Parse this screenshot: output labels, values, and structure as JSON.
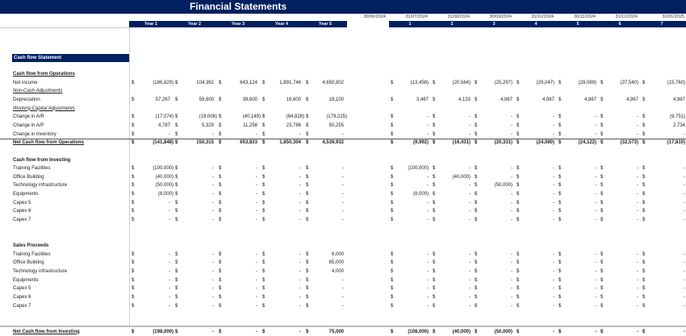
{
  "header": {
    "title": "Financial Statements",
    "year_labels": [
      "Year 1",
      "Year 2",
      "Year 3",
      "Year 4",
      "Year 5"
    ],
    "period_dates": [
      "30/06/2024",
      "31/07/2024",
      "31/08/2024",
      "30/09/2024",
      "31/10/2024",
      "30/11/2024",
      "31/12/2024",
      "31/01/2025"
    ],
    "period_labels": [
      "1",
      "2",
      "3",
      "4",
      "5",
      "6",
      "7"
    ],
    "colors": {
      "navy": "#002060"
    }
  },
  "section": {
    "title": "Cash flow Statement"
  },
  "currency_symbol": "$",
  "rows": [
    {
      "label": "Cash flow from Operations",
      "style": "bold-ul",
      "values": null
    },
    {
      "label": "Net income",
      "style": "normal",
      "years": [
        "(186,829)",
        "104,392",
        "643,124",
        "1,891,746",
        "4,650,802"
      ],
      "months": [
        "(13,458)",
        "(20,564)",
        "(25,297)",
        "(29,047)",
        "(29,089)",
        "(37,540)",
        "(15,760)"
      ]
    },
    {
      "label": "Non-Cash Adjustments",
      "style": "it-ul",
      "values": null
    },
    {
      "label": "Depreciation",
      "style": "normal",
      "years": [
        "57,267",
        "59,600",
        "39,600",
        "19,600",
        "18,100"
      ],
      "months": [
        "3,467",
        "4,133",
        "4,967",
        "4,967",
        "4,967",
        "4,967",
        "4,967"
      ]
    },
    {
      "label": "Working Capital Adjustments",
      "style": "it-ul",
      "values": null
    },
    {
      "label": "Change in A/R",
      "style": "normal",
      "years": [
        "(17,074)",
        "(19,006)",
        "(40,149)",
        "(84,828)",
        "(179,225)"
      ],
      "months": [
        "-",
        "-",
        "-",
        "-",
        "-",
        "-",
        "(9,751)"
      ]
    },
    {
      "label": "Change in A/P",
      "style": "normal",
      "years": [
        "4,787",
        "5,329",
        "11,258",
        "23,786",
        "50,255"
      ],
      "months": [
        "-",
        "-",
        "-",
        "-",
        "-",
        "-",
        "2,734"
      ]
    },
    {
      "label": "Change in Inventory",
      "style": "normal",
      "years": [
        "-",
        "-",
        "-",
        "-",
        "-"
      ],
      "months": [
        "-",
        "-",
        "-",
        "-",
        "-",
        "-",
        "-"
      ]
    },
    {
      "label": "Net Cash flow from Operations",
      "style": "total",
      "years": [
        "(141,848)",
        "150,315",
        "653,833",
        "1,850,304",
        "4,539,932"
      ],
      "months": [
        "(9,992)",
        "(16,431)",
        "(20,331)",
        "(24,080)",
        "(24,122)",
        "(32,573)",
        "(17,810)"
      ]
    },
    {
      "label": "",
      "style": "blank",
      "values": null
    },
    {
      "label": "Cash flow from Investing",
      "style": "bold",
      "values": null
    },
    {
      "label": "Training Facilities",
      "style": "normal",
      "years": [
        "(100,000)",
        "-",
        "-",
        "-",
        "-"
      ],
      "months": [
        "(100,000)",
        "-",
        "-",
        "-",
        "-",
        "-",
        "-"
      ]
    },
    {
      "label": "Office Building",
      "style": "normal",
      "years": [
        "(40,000)",
        "-",
        "-",
        "-",
        "-"
      ],
      "months": [
        "-",
        "(40,000)",
        "-",
        "-",
        "-",
        "-",
        "-"
      ]
    },
    {
      "label": "Technology infrastructure",
      "style": "normal",
      "years": [
        "(50,000)",
        "-",
        "-",
        "-",
        "-"
      ],
      "months": [
        "-",
        "-",
        "(50,000)",
        "-",
        "-",
        "-",
        "-"
      ]
    },
    {
      "label": "Equipments",
      "style": "normal",
      "years": [
        "(8,000)",
        "-",
        "-",
        "-",
        "-"
      ],
      "months": [
        "(8,000)",
        "-",
        "-",
        "-",
        "-",
        "-",
        "-"
      ]
    },
    {
      "label": "Capex 5",
      "style": "normal",
      "years": [
        "-",
        "-",
        "-",
        "-",
        "-"
      ],
      "months": [
        "-",
        "-",
        "-",
        "-",
        "-",
        "-",
        "-"
      ]
    },
    {
      "label": "Capex 6",
      "style": "normal",
      "years": [
        "-",
        "-",
        "-",
        "-",
        "-"
      ],
      "months": [
        "-",
        "-",
        "-",
        "-",
        "-",
        "-",
        "-"
      ]
    },
    {
      "label": "Capex 7",
      "style": "normal",
      "years": [
        "-",
        "-",
        "-",
        "-",
        "-"
      ],
      "months": [
        "-",
        "-",
        "-",
        "-",
        "-",
        "-",
        "-"
      ]
    },
    {
      "label": "",
      "style": "blank",
      "values": null
    },
    {
      "label": "",
      "style": "blank",
      "values": null
    },
    {
      "label": "Sales Proceeds",
      "style": "bold",
      "values": null
    },
    {
      "label": "Training Facilities",
      "style": "normal",
      "years": [
        "-",
        "-",
        "-",
        "-",
        "6,000"
      ],
      "months": [
        "-",
        "-",
        "-",
        "-",
        "-",
        "-",
        "-"
      ]
    },
    {
      "label": "Office Building",
      "style": "normal",
      "years": [
        "-",
        "-",
        "-",
        "-",
        "65,000"
      ],
      "months": [
        "-",
        "-",
        "-",
        "-",
        "-",
        "-",
        "-"
      ]
    },
    {
      "label": "Technology infrastructure",
      "style": "normal",
      "years": [
        "-",
        "-",
        "-",
        "-",
        "4,000"
      ],
      "months": [
        "-",
        "-",
        "-",
        "-",
        "-",
        "-",
        "-"
      ]
    },
    {
      "label": "Equipments",
      "style": "normal",
      "years": [
        "-",
        "-",
        "-",
        "-",
        "-"
      ],
      "months": [
        "-",
        "-",
        "-",
        "-",
        "-",
        "-",
        "-"
      ]
    },
    {
      "label": "Capex 5",
      "style": "normal",
      "years": [
        "-",
        "-",
        "-",
        "-",
        "-"
      ],
      "months": [
        "-",
        "-",
        "-",
        "-",
        "-",
        "-",
        "-"
      ]
    },
    {
      "label": "Capex 6",
      "style": "normal",
      "years": [
        "-",
        "-",
        "-",
        "-",
        "-"
      ],
      "months": [
        "-",
        "-",
        "-",
        "-",
        "-",
        "-",
        "-"
      ]
    },
    {
      "label": "Capex 7",
      "style": "normal",
      "years": [
        "-",
        "-",
        "-",
        "-",
        "-"
      ],
      "months": [
        "-",
        "-",
        "-",
        "-",
        "-",
        "-",
        "-"
      ]
    },
    {
      "label": "",
      "style": "blank",
      "values": null
    },
    {
      "label": "",
      "style": "blank",
      "values": null
    },
    {
      "label": "Net Cash flow from Investing",
      "style": "total2",
      "years": [
        "(198,000)",
        "-",
        "-",
        "-",
        "75,000"
      ],
      "months": [
        "(108,000)",
        "(40,000)",
        "(50,000)",
        "-",
        "-",
        "-",
        "-"
      ]
    }
  ]
}
